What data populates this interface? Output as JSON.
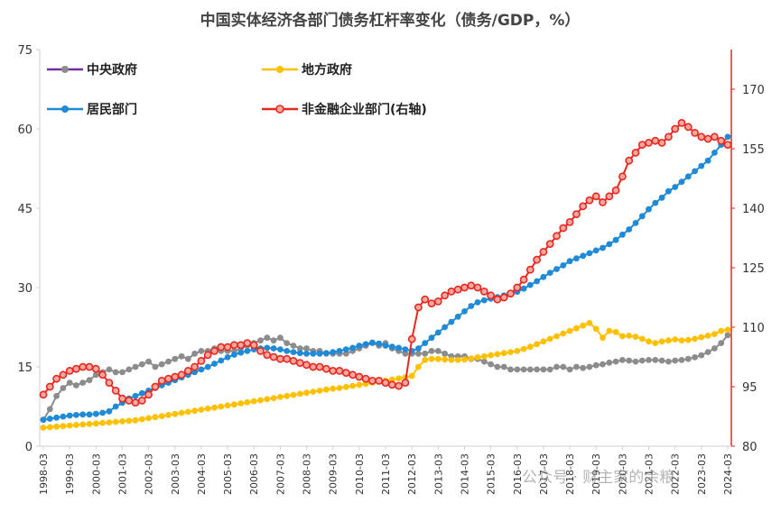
{
  "chart_data": {
    "type": "line",
    "title": "中国实体经济各部门债务杠杆率变化（债务/GDP，%）",
    "left_axis": {
      "ylim": [
        0,
        75
      ],
      "ticks": [
        "0",
        "15",
        "30",
        "45",
        "60",
        "75"
      ]
    },
    "right_axis": {
      "ylim": [
        80,
        180
      ],
      "ticks": [
        "80",
        "95",
        "110",
        "125",
        "140",
        "155",
        "170"
      ],
      "color": "#e8281e"
    },
    "x_axis": {
      "start": "1998-03",
      "step_months": 3,
      "count": 105,
      "tick_labels": [
        "1998-03",
        "1999-03",
        "2000-03",
        "2001-03",
        "2002-03",
        "2003-03",
        "2004-03",
        "2005-03",
        "2006-03",
        "2007-03",
        "2008-03",
        "2009-03",
        "2010-03",
        "2011-03",
        "2012-03",
        "2013-03",
        "2014-03",
        "2015-03",
        "2016-03",
        "2017-03",
        "2018-03",
        "2019-03",
        "2020-03",
        "2021-03",
        "2022-03",
        "2023-03",
        "2024-03"
      ]
    },
    "grid": false,
    "legend_position": "top-left",
    "watermark": "公众号 · 财主家的余粮",
    "series": [
      {
        "name": "中央政府",
        "axis": "left",
        "color": "#8c8c8c",
        "legend_color": "#7030a0",
        "values": [
          5,
          7,
          9.5,
          11,
          12,
          11.5,
          12,
          12.5,
          13.5,
          14,
          14.5,
          14,
          14,
          14.5,
          15,
          15.5,
          16,
          15,
          15.5,
          16,
          16.5,
          17,
          16.5,
          17.5,
          18,
          18,
          18.5,
          18,
          18,
          18,
          18.5,
          19,
          19.5,
          20,
          20.5,
          20,
          20.5,
          19.5,
          19,
          18.5,
          18.5,
          18,
          18,
          17.5,
          17.5,
          17.5,
          17.5,
          18,
          18.5,
          19,
          19.5,
          19,
          19.5,
          18.5,
          18,
          17.5,
          17.5,
          17.5,
          17.5,
          18,
          18,
          17.5,
          17,
          17,
          17,
          16.5,
          16.5,
          16,
          15.5,
          15,
          15,
          14.5,
          14.5,
          14.5,
          14.5,
          14.5,
          14.5,
          14.5,
          15,
          15,
          14.5,
          15,
          14.8,
          15,
          15.3,
          15.5,
          15.8,
          16,
          16.3,
          16.2,
          16,
          16.2,
          16.3,
          16.3,
          16.2,
          16,
          16.2,
          16.3,
          16.5,
          16.8,
          17.2,
          17.8,
          18.5,
          19.5,
          21
        ]
      },
      {
        "name": "地方政府",
        "axis": "left",
        "color": "#ffc000",
        "values": [
          3.5,
          3.6,
          3.7,
          3.8,
          3.9,
          4,
          4.1,
          4.2,
          4.3,
          4.4,
          4.5,
          4.6,
          4.7,
          4.8,
          4.9,
          5.1,
          5.3,
          5.5,
          5.7,
          5.9,
          6.1,
          6.3,
          6.5,
          6.7,
          6.9,
          7.1,
          7.3,
          7.5,
          7.7,
          7.9,
          8.1,
          8.3,
          8.5,
          8.7,
          8.9,
          9.1,
          9.3,
          9.5,
          9.7,
          9.9,
          10.1,
          10.3,
          10.5,
          10.7,
          10.9,
          11,
          11.2,
          11.4,
          11.6,
          11.8,
          12,
          12.2,
          12.4,
          12.6,
          12.8,
          13,
          13.3,
          15,
          16.3,
          16.5,
          16.5,
          16.4,
          16.3,
          16.3,
          16.4,
          16.6,
          16.8,
          17,
          17.2,
          17.4,
          17.6,
          17.8,
          18,
          18.4,
          18.8,
          19.3,
          19.8,
          20.3,
          20.8,
          21.3,
          21.8,
          22.3,
          22.8,
          23.3,
          22.2,
          20.5,
          21.8,
          21.6,
          20.8,
          20.9,
          20.7,
          20.3,
          19.8,
          19.5,
          19.8,
          20,
          20.2,
          20,
          20.1,
          20.3,
          20.6,
          20.9,
          21.2,
          21.8,
          22
        ]
      },
      {
        "name": "居民部门",
        "axis": "left",
        "color": "#1f8ad6",
        "values": [
          5,
          5.2,
          5.4,
          5.6,
          5.8,
          5.9,
          6,
          6,
          6.1,
          6.3,
          6.6,
          7.5,
          8.2,
          9,
          9.5,
          10,
          10.5,
          11,
          11.5,
          12,
          12.5,
          13,
          13.5,
          14,
          14.5,
          15,
          15.6,
          16.2,
          16.8,
          17.3,
          17.7,
          18,
          18.3,
          18.5,
          18.6,
          18.5,
          18.3,
          18,
          17.8,
          17.6,
          17.5,
          17.5,
          17.5,
          17.6,
          17.8,
          18,
          18.3,
          18.6,
          19,
          19.3,
          19.6,
          19.4,
          19,
          18.8,
          18.6,
          18.3,
          18,
          18.5,
          19.5,
          20.5,
          21.5,
          22.5,
          23.5,
          24.5,
          25.5,
          26.5,
          27.2,
          27.6,
          27.9,
          28.2,
          28.5,
          28.8,
          29.2,
          29.8,
          30.5,
          31.2,
          32,
          32.8,
          33.5,
          34.2,
          35,
          35.5,
          36,
          36.5,
          37,
          37.5,
          38.2,
          39,
          40,
          41,
          42.2,
          43.5,
          44.8,
          46,
          47,
          48.2,
          49,
          50,
          51,
          52,
          53,
          54,
          55.5,
          57,
          58.5
        ]
      },
      {
        "name": "非金融企业部门(右轴)",
        "axis": "right",
        "color": "#e8281e",
        "marker_fill": "#f4a8a2",
        "values": [
          93,
          95,
          97,
          98,
          99,
          99.5,
          100,
          100,
          99.5,
          98,
          96,
          94,
          92,
          91.5,
          91,
          91.5,
          93,
          95,
          96.5,
          97,
          97.5,
          98,
          99,
          100,
          101.5,
          103,
          104,
          105,
          105,
          105.5,
          105.5,
          106,
          105.5,
          104,
          103,
          102.5,
          102,
          102,
          101.5,
          101,
          100.5,
          100,
          100,
          99.5,
          99,
          99,
          98.5,
          98,
          97.5,
          97,
          96.5,
          96.5,
          96,
          95.5,
          95.2,
          96,
          107,
          115,
          117,
          116,
          116.5,
          118,
          119,
          119.5,
          120,
          120.5,
          120,
          119,
          118,
          117,
          117.5,
          118.5,
          120,
          122,
          124.5,
          127,
          129,
          131,
          133,
          135,
          136.5,
          138.5,
          140.5,
          142,
          143,
          141.5,
          143,
          144.5,
          148,
          152,
          154,
          156,
          156.5,
          157,
          156.5,
          158,
          160,
          161.5,
          160.5,
          159,
          158,
          157.5,
          158,
          157,
          156
        ]
      }
    ]
  }
}
